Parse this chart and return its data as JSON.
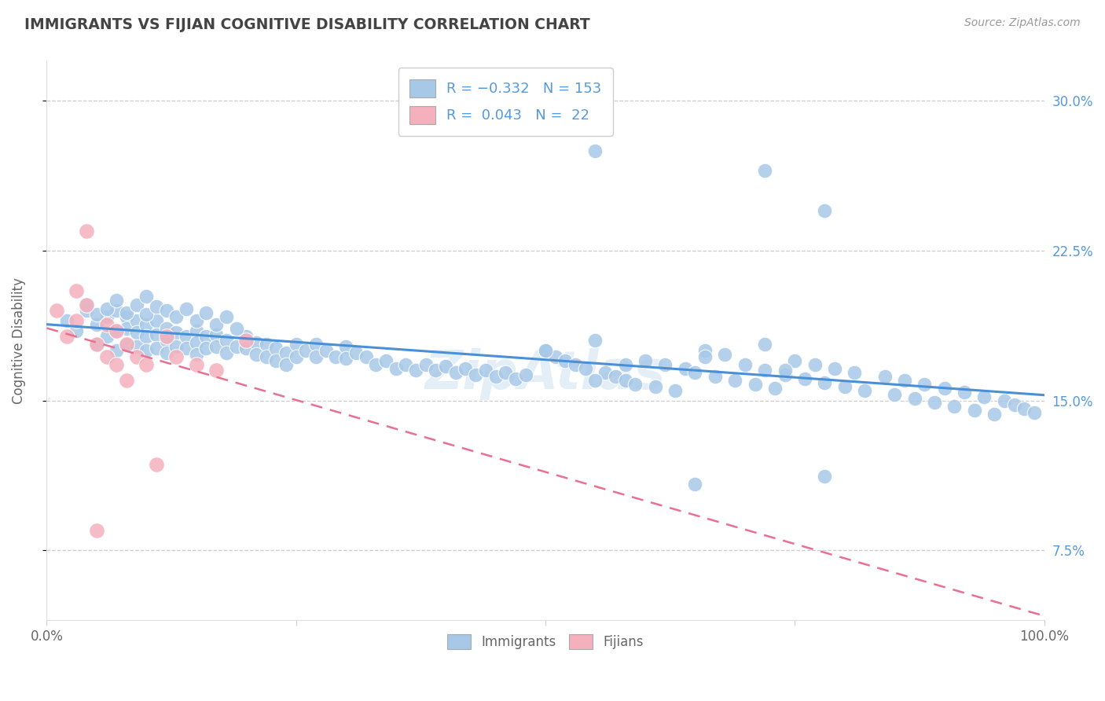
{
  "title": "IMMIGRANTS VS FIJIAN COGNITIVE DISABILITY CORRELATION CHART",
  "source": "Source: ZipAtlas.com",
  "ylabel": "Cognitive Disability",
  "xlim": [
    0.0,
    1.0
  ],
  "ylim": [
    0.04,
    0.32
  ],
  "yticks": [
    0.075,
    0.15,
    0.225,
    0.3
  ],
  "ytick_labels": [
    "7.5%",
    "15.0%",
    "22.5%",
    "30.0%"
  ],
  "xticks": [
    0.0,
    0.25,
    0.5,
    0.75,
    1.0
  ],
  "xtick_labels": [
    "0.0%",
    "",
    "",
    "",
    "100.0%"
  ],
  "blue_color": "#a8c8e8",
  "pink_color": "#f4b0bc",
  "blue_line_color": "#4a90d9",
  "pink_line_color": "#e87090",
  "grid_color": "#cccccc",
  "title_color": "#444444",
  "axis_label_color": "#666666",
  "tick_color_right": "#5599dd",
  "background_color": "#ffffff",
  "immigrants_x": [
    0.02,
    0.03,
    0.04,
    0.05,
    0.05,
    0.06,
    0.06,
    0.07,
    0.07,
    0.07,
    0.08,
    0.08,
    0.08,
    0.09,
    0.09,
    0.09,
    0.1,
    0.1,
    0.1,
    0.11,
    0.11,
    0.11,
    0.12,
    0.12,
    0.12,
    0.13,
    0.13,
    0.14,
    0.14,
    0.15,
    0.15,
    0.15,
    0.16,
    0.16,
    0.17,
    0.17,
    0.18,
    0.18,
    0.19,
    0.2,
    0.2,
    0.21,
    0.21,
    0.22,
    0.22,
    0.23,
    0.23,
    0.24,
    0.24,
    0.25,
    0.25,
    0.26,
    0.27,
    0.27,
    0.28,
    0.29,
    0.3,
    0.3,
    0.31,
    0.32,
    0.33,
    0.34,
    0.35,
    0.36,
    0.37,
    0.38,
    0.39,
    0.4,
    0.41,
    0.42,
    0.43,
    0.44,
    0.45,
    0.46,
    0.47,
    0.48,
    0.5,
    0.51,
    0.52,
    0.53,
    0.54,
    0.55,
    0.56,
    0.57,
    0.58,
    0.59,
    0.6,
    0.61,
    0.62,
    0.63,
    0.64,
    0.65,
    0.66,
    0.67,
    0.68,
    0.69,
    0.7,
    0.71,
    0.72,
    0.73,
    0.74,
    0.75,
    0.76,
    0.77,
    0.78,
    0.79,
    0.8,
    0.81,
    0.82,
    0.84,
    0.85,
    0.86,
    0.87,
    0.88,
    0.89,
    0.9,
    0.91,
    0.92,
    0.93,
    0.94,
    0.95,
    0.96,
    0.97,
    0.98,
    0.99,
    0.04,
    0.05,
    0.06,
    0.07,
    0.08,
    0.09,
    0.1,
    0.1,
    0.11,
    0.12,
    0.13,
    0.14,
    0.15,
    0.16,
    0.17,
    0.18,
    0.19,
    0.55,
    0.72,
    0.78,
    0.55,
    0.72,
    0.65,
    0.78,
    0.5,
    0.58,
    0.66,
    0.74
  ],
  "immigrants_y": [
    0.19,
    0.185,
    0.195,
    0.188,
    0.178,
    0.192,
    0.182,
    0.195,
    0.185,
    0.175,
    0.192,
    0.186,
    0.178,
    0.19,
    0.184,
    0.177,
    0.188,
    0.182,
    0.175,
    0.19,
    0.183,
    0.176,
    0.186,
    0.18,
    0.174,
    0.184,
    0.177,
    0.182,
    0.176,
    0.185,
    0.179,
    0.173,
    0.182,
    0.176,
    0.183,
    0.177,
    0.18,
    0.174,
    0.177,
    0.182,
    0.176,
    0.179,
    0.173,
    0.178,
    0.172,
    0.176,
    0.17,
    0.174,
    0.168,
    0.178,
    0.172,
    0.175,
    0.178,
    0.172,
    0.175,
    0.172,
    0.177,
    0.171,
    0.174,
    0.172,
    0.168,
    0.17,
    0.166,
    0.168,
    0.165,
    0.168,
    0.165,
    0.167,
    0.164,
    0.166,
    0.163,
    0.165,
    0.162,
    0.164,
    0.161,
    0.163,
    0.175,
    0.172,
    0.17,
    0.168,
    0.166,
    0.18,
    0.164,
    0.162,
    0.16,
    0.158,
    0.17,
    0.157,
    0.168,
    0.155,
    0.166,
    0.164,
    0.175,
    0.162,
    0.173,
    0.16,
    0.168,
    0.158,
    0.165,
    0.156,
    0.163,
    0.17,
    0.161,
    0.168,
    0.159,
    0.166,
    0.157,
    0.164,
    0.155,
    0.162,
    0.153,
    0.16,
    0.151,
    0.158,
    0.149,
    0.156,
    0.147,
    0.154,
    0.145,
    0.152,
    0.143,
    0.15,
    0.148,
    0.146,
    0.144,
    0.198,
    0.193,
    0.196,
    0.2,
    0.194,
    0.198,
    0.202,
    0.193,
    0.197,
    0.195,
    0.192,
    0.196,
    0.19,
    0.194,
    0.188,
    0.192,
    0.186,
    0.275,
    0.265,
    0.245,
    0.16,
    0.178,
    0.108,
    0.112,
    0.175,
    0.168,
    0.172,
    0.165
  ],
  "fijians_x": [
    0.01,
    0.02,
    0.03,
    0.03,
    0.04,
    0.04,
    0.05,
    0.06,
    0.06,
    0.07,
    0.07,
    0.08,
    0.09,
    0.1,
    0.11,
    0.12,
    0.13,
    0.15,
    0.17,
    0.2,
    0.05,
    0.08
  ],
  "fijians_y": [
    0.195,
    0.182,
    0.205,
    0.19,
    0.235,
    0.198,
    0.178,
    0.188,
    0.172,
    0.185,
    0.168,
    0.178,
    0.172,
    0.168,
    0.118,
    0.182,
    0.172,
    0.168,
    0.165,
    0.18,
    0.085,
    0.16
  ]
}
